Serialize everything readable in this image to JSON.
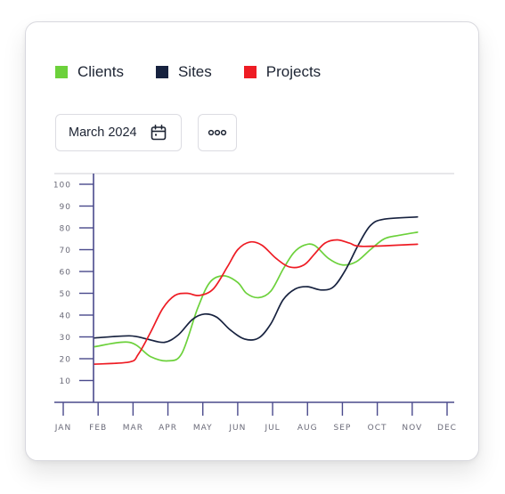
{
  "legend": [
    {
      "label": "Clients",
      "color": "#6cd13b"
    },
    {
      "label": "Sites",
      "color": "#17223f"
    },
    {
      "label": "Projects",
      "color": "#ee1c24"
    }
  ],
  "toolbar": {
    "date_value": "March 2024",
    "date_icon": "calendar-icon",
    "more_icon": "more-horizontal-icon"
  },
  "chart_data": {
    "type": "line",
    "categories": [
      "JAN",
      "FEB",
      "MAR",
      "APR",
      "MAY",
      "JUN",
      "JUL",
      "AUG",
      "SEP",
      "OCT",
      "NOV",
      "DEC"
    ],
    "y_ticks": [
      10,
      20,
      30,
      40,
      50,
      60,
      70,
      80,
      90,
      100
    ],
    "ylim": [
      0,
      105
    ],
    "grid": false,
    "legend_position": "top",
    "axis_color": "#4a4a8c",
    "series": [
      {
        "name": "Clients",
        "color": "#6cd13b",
        "points": [
          [
            0.9,
            25.5
          ],
          [
            1.9,
            27.5
          ],
          [
            2.5,
            21
          ],
          [
            3.0,
            19
          ],
          [
            3.4,
            22.5
          ],
          [
            3.85,
            43
          ],
          [
            4.2,
            55
          ],
          [
            4.6,
            58
          ],
          [
            5.0,
            55
          ],
          [
            5.25,
            50
          ],
          [
            5.6,
            48
          ],
          [
            5.95,
            51
          ],
          [
            6.3,
            61
          ],
          [
            6.6,
            68.5
          ],
          [
            6.9,
            72
          ],
          [
            7.2,
            72
          ],
          [
            7.6,
            66
          ],
          [
            8.0,
            63
          ],
          [
            8.4,
            64.5
          ],
          [
            8.8,
            70
          ],
          [
            9.2,
            75
          ],
          [
            9.6,
            76.5
          ],
          [
            10.15,
            78
          ]
        ]
      },
      {
        "name": "Sites",
        "color": "#17223f",
        "points": [
          [
            0.9,
            29.5
          ],
          [
            1.9,
            30.5
          ],
          [
            2.4,
            29
          ],
          [
            2.9,
            27.5
          ],
          [
            3.3,
            31
          ],
          [
            3.7,
            38
          ],
          [
            4.05,
            40.5
          ],
          [
            4.4,
            39
          ],
          [
            4.8,
            33
          ],
          [
            5.2,
            29
          ],
          [
            5.6,
            29.5
          ],
          [
            5.95,
            36
          ],
          [
            6.3,
            47
          ],
          [
            6.65,
            52
          ],
          [
            7.0,
            53
          ],
          [
            7.4,
            51.5
          ],
          [
            7.75,
            53
          ],
          [
            8.1,
            61
          ],
          [
            8.45,
            72
          ],
          [
            8.8,
            81
          ],
          [
            9.2,
            84
          ],
          [
            10.15,
            85
          ]
        ]
      },
      {
        "name": "Projects",
        "color": "#ee1c24",
        "points": [
          [
            0.9,
            17.5
          ],
          [
            1.9,
            18.5
          ],
          [
            2.15,
            22
          ],
          [
            2.5,
            32
          ],
          [
            2.85,
            43
          ],
          [
            3.2,
            49
          ],
          [
            3.55,
            50
          ],
          [
            3.9,
            49
          ],
          [
            4.3,
            52
          ],
          [
            4.7,
            62
          ],
          [
            5.0,
            70
          ],
          [
            5.35,
            73.5
          ],
          [
            5.7,
            72
          ],
          [
            6.1,
            66
          ],
          [
            6.5,
            62
          ],
          [
            6.9,
            63
          ],
          [
            7.2,
            68
          ],
          [
            7.5,
            73
          ],
          [
            7.85,
            74.5
          ],
          [
            8.2,
            73
          ],
          [
            8.6,
            71.5
          ],
          [
            10.15,
            72.5
          ]
        ]
      }
    ]
  }
}
